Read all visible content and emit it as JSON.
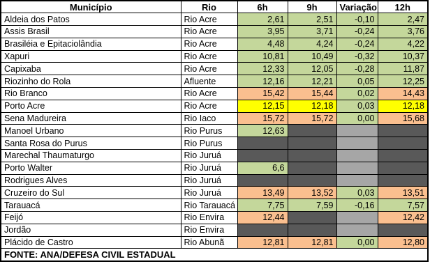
{
  "colors": {
    "green": "#c4d79b",
    "orange": "#fabf8f",
    "yellow": "#ffff00",
    "dark": "#595959",
    "light": "#a6a6a6",
    "white": "#ffffff",
    "border": "#000000"
  },
  "table": {
    "columns": [
      {
        "label": "Município"
      },
      {
        "label": "Rio"
      },
      {
        "label": "6h"
      },
      {
        "label": "9h"
      },
      {
        "label": "Variação"
      },
      {
        "label": "12h"
      }
    ],
    "rows": [
      {
        "municipio": "Aldeia dos Patos",
        "rio": "Rio Acre",
        "cells": [
          {
            "v": "2,61",
            "bg": "green"
          },
          {
            "v": "2,51",
            "bg": "green"
          },
          {
            "v": "-0,10",
            "bg": "green"
          },
          {
            "v": "2,47",
            "bg": "green"
          }
        ]
      },
      {
        "municipio": "Assis Brasil",
        "rio": "Rio Acre",
        "cells": [
          {
            "v": "3,95",
            "bg": "green"
          },
          {
            "v": "3,71",
            "bg": "green"
          },
          {
            "v": "-0,24",
            "bg": "green"
          },
          {
            "v": "3,76",
            "bg": "green"
          }
        ]
      },
      {
        "municipio": "Brasiléia e Epitaciolândia",
        "rio": "Rio Acre",
        "cells": [
          {
            "v": "4,48",
            "bg": "green"
          },
          {
            "v": "4,24",
            "bg": "green"
          },
          {
            "v": "-0,24",
            "bg": "green"
          },
          {
            "v": "4,22",
            "bg": "green"
          }
        ]
      },
      {
        "municipio": "Xapuri",
        "rio": "Rio Acre",
        "cells": [
          {
            "v": "10,81",
            "bg": "green"
          },
          {
            "v": "10,49",
            "bg": "green"
          },
          {
            "v": "-0,32",
            "bg": "green"
          },
          {
            "v": "10,37",
            "bg": "green"
          }
        ]
      },
      {
        "municipio": "Capixaba",
        "rio": "Rio Acre",
        "cells": [
          {
            "v": "12,33",
            "bg": "green"
          },
          {
            "v": "12,05",
            "bg": "green"
          },
          {
            "v": "-0,28",
            "bg": "green"
          },
          {
            "v": "11,87",
            "bg": "green"
          }
        ]
      },
      {
        "municipio": "Riozinho do Rola",
        "rio": "Afluente",
        "cells": [
          {
            "v": "12,16",
            "bg": "green"
          },
          {
            "v": "12,21",
            "bg": "green"
          },
          {
            "v": "0,05",
            "bg": "green"
          },
          {
            "v": "12,25",
            "bg": "green"
          }
        ]
      },
      {
        "municipio": "Rio Branco",
        "rio": "Rio Acre",
        "cells": [
          {
            "v": "15,42",
            "bg": "orange"
          },
          {
            "v": "15,44",
            "bg": "orange"
          },
          {
            "v": "0,02",
            "bg": "green"
          },
          {
            "v": "14,43",
            "bg": "orange"
          }
        ]
      },
      {
        "municipio": "Porto Acre",
        "rio": "Rio Acre",
        "cells": [
          {
            "v": "12,15",
            "bg": "yellow"
          },
          {
            "v": "12,18",
            "bg": "yellow"
          },
          {
            "v": "0,03",
            "bg": "green"
          },
          {
            "v": "12,18",
            "bg": "yellow"
          }
        ]
      },
      {
        "municipio": "Sena Madureira",
        "rio": "Rio Iaco",
        "cells": [
          {
            "v": "15,72",
            "bg": "orange"
          },
          {
            "v": "15,72",
            "bg": "orange"
          },
          {
            "v": "0,00",
            "bg": "green"
          },
          {
            "v": "15,68",
            "bg": "orange"
          }
        ]
      },
      {
        "municipio": "Manoel Urbano",
        "rio": "Rio Purus",
        "cells": [
          {
            "v": "12,63",
            "bg": "green"
          },
          {
            "v": "",
            "bg": "dark"
          },
          {
            "v": "",
            "bg": "light"
          },
          {
            "v": "",
            "bg": "dark"
          }
        ]
      },
      {
        "municipio": "Santa Rosa do Purus",
        "rio": "Rio Purus",
        "cells": [
          {
            "v": "",
            "bg": "dark"
          },
          {
            "v": "",
            "bg": "dark"
          },
          {
            "v": "",
            "bg": "light"
          },
          {
            "v": "",
            "bg": "dark"
          }
        ]
      },
      {
        "municipio": "Marechal Thaumaturgo",
        "rio": "Rio Juruá",
        "cells": [
          {
            "v": "",
            "bg": "dark"
          },
          {
            "v": "",
            "bg": "dark"
          },
          {
            "v": "",
            "bg": "light"
          },
          {
            "v": "",
            "bg": "dark"
          }
        ]
      },
      {
        "municipio": "Porto Walter",
        "rio": "Rio Juruá",
        "cells": [
          {
            "v": "6,6",
            "bg": "green"
          },
          {
            "v": "",
            "bg": "dark"
          },
          {
            "v": "",
            "bg": "light"
          },
          {
            "v": "",
            "bg": "dark"
          }
        ]
      },
      {
        "municipio": "Rodrigues Alves",
        "rio": "Rio Juruá",
        "cells": [
          {
            "v": "",
            "bg": "dark"
          },
          {
            "v": "",
            "bg": "dark"
          },
          {
            "v": "",
            "bg": "light"
          },
          {
            "v": "",
            "bg": "dark"
          }
        ]
      },
      {
        "municipio": "Cruzeiro do Sul",
        "rio": "Rio Juruá",
        "cells": [
          {
            "v": "13,49",
            "bg": "orange"
          },
          {
            "v": "13,52",
            "bg": "orange"
          },
          {
            "v": "0,03",
            "bg": "green"
          },
          {
            "v": "13,51",
            "bg": "orange"
          }
        ]
      },
      {
        "municipio": "Tarauacá",
        "rio": "Rio Tarauacá",
        "cells": [
          {
            "v": "7,75",
            "bg": "green"
          },
          {
            "v": "7,59",
            "bg": "green"
          },
          {
            "v": "-0,16",
            "bg": "green"
          },
          {
            "v": "7,57",
            "bg": "green"
          }
        ]
      },
      {
        "municipio": "Feijó",
        "rio": "Rio Envira",
        "cells": [
          {
            "v": "12,44",
            "bg": "orange"
          },
          {
            "v": "",
            "bg": "dark"
          },
          {
            "v": "",
            "bg": "light"
          },
          {
            "v": "12,42",
            "bg": "orange"
          }
        ]
      },
      {
        "municipio": "Jordão",
        "rio": "Rio Envira",
        "cells": [
          {
            "v": "",
            "bg": "dark"
          },
          {
            "v": "",
            "bg": "dark"
          },
          {
            "v": "",
            "bg": "light"
          },
          {
            "v": "",
            "bg": "dark"
          }
        ]
      },
      {
        "municipio": "Plácido de Castro",
        "rio": "Rio Abunã",
        "cells": [
          {
            "v": "12,81",
            "bg": "orange"
          },
          {
            "v": "12,81",
            "bg": "orange"
          },
          {
            "v": "0,00",
            "bg": "green"
          },
          {
            "v": "12,80",
            "bg": "orange"
          }
        ]
      }
    ],
    "footer": "FONTE: ANA/DEFESA CIVIL ESTADUAL"
  }
}
